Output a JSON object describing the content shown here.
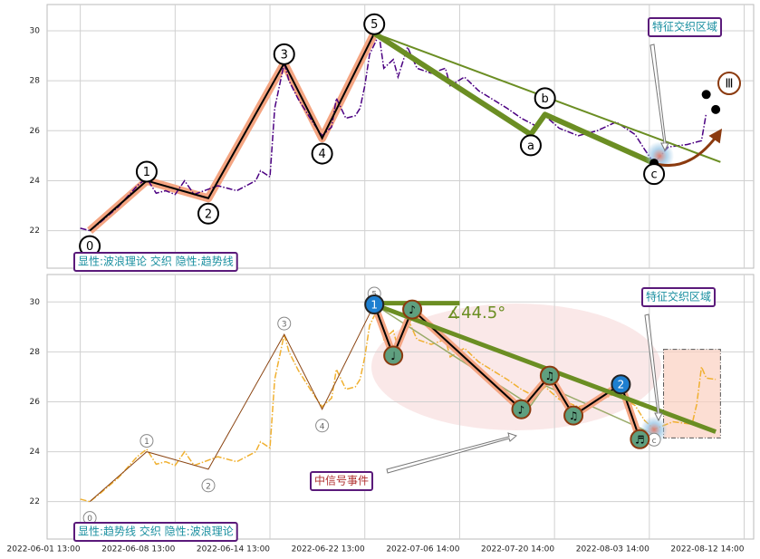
{
  "chart_data": [
    {
      "type": "line",
      "xlim": [
        -7,
        142
      ],
      "ylim": [
        20.5,
        31.05
      ],
      "yticks": [
        22,
        24,
        26,
        28,
        30
      ],
      "grid": true,
      "price": {
        "color": "#4b0082",
        "x": [
          0,
          2,
          4,
          8,
          12,
          14,
          16,
          18,
          20,
          22,
          24,
          29,
          33,
          37,
          38,
          40,
          41,
          43,
          44,
          46,
          49,
          51,
          53,
          54,
          56,
          58,
          59,
          60,
          61,
          63,
          64,
          66,
          67,
          69,
          71,
          74,
          77,
          78,
          81,
          84,
          87,
          90,
          93,
          96,
          98,
          101,
          105,
          109,
          113,
          117,
          119,
          121,
          124,
          128,
          131,
          132
        ],
        "values": [
          22.1,
          22.0,
          22.3,
          22.95,
          23.8,
          24.1,
          23.5,
          23.6,
          23.45,
          24.0,
          23.45,
          23.8,
          23.6,
          24.0,
          24.4,
          24.15,
          26.9,
          28.7,
          28.0,
          27.25,
          26.35,
          25.8,
          26.15,
          27.3,
          26.5,
          26.6,
          26.9,
          27.8,
          29.05,
          29.85,
          28.5,
          28.85,
          28.15,
          29.35,
          28.5,
          28.3,
          28.5,
          27.8,
          28.15,
          27.6,
          27.25,
          26.9,
          26.5,
          26.2,
          26.6,
          26.1,
          25.8,
          26.0,
          26.35,
          25.85,
          25.25,
          24.7,
          25.35,
          25.45,
          25.6,
          26.7
        ]
      },
      "wave": {
        "color": "#000000",
        "halo": "#f4a582",
        "x": [
          2,
          14,
          27,
          43,
          51,
          62
        ],
        "values": [
          22.0,
          24.0,
          23.3,
          28.7,
          25.7,
          29.9
        ],
        "labels": [
          "0",
          "1",
          "2",
          "3",
          "4",
          "5"
        ]
      },
      "correction": {
        "color": "#6b8e23",
        "x": [
          62,
          95,
          98,
          121
        ],
        "values": [
          29.9,
          25.85,
          26.65,
          24.7
        ],
        "labels": [
          null,
          "a",
          "b",
          "c"
        ]
      },
      "trend_line": {
        "color": "#6b8e23",
        "x": [
          62,
          135
        ],
        "values": [
          29.9,
          24.75
        ]
      },
      "arrow": {
        "color": "#8b3a0f",
        "x": [
          121,
          135
        ],
        "values": [
          24.7,
          26.0
        ]
      },
      "end_points": {
        "color": "#000000",
        "x": [
          132,
          134
        ],
        "values": [
          27.45,
          26.85
        ]
      },
      "wave_degree": "Ⅲ",
      "callout": "特征交织区域",
      "legend_box": "显性:波浪理论 交织 隐性:趋势线"
    },
    {
      "type": "line",
      "xlim": [
        -7,
        142
      ],
      "ylim": [
        20.5,
        31.1
      ],
      "yticks": [
        22,
        24,
        26,
        28,
        30
      ],
      "grid": true,
      "xticks": [
        {
          "value": 0,
          "label": "2022-06-01 13:00"
        },
        {
          "value": 20,
          "label": "2022-06-08 13:00"
        },
        {
          "value": 40,
          "label": "2022-06-14 13:00"
        },
        {
          "value": 60,
          "label": "2022-06-22 13:00"
        },
        {
          "value": 80,
          "label": "2022-07-06 14:00"
        },
        {
          "value": 100,
          "label": "2022-07-20 14:00"
        },
        {
          "value": 120,
          "label": "2022-08-03 14:00"
        },
        {
          "value": 140,
          "label": "2022-08-12 14:00"
        }
      ],
      "price": {
        "color": "#f0b030",
        "x": [
          0,
          2,
          4,
          8,
          12,
          14,
          16,
          18,
          20,
          22,
          24,
          29,
          33,
          37,
          38,
          40,
          41,
          43,
          44,
          46,
          49,
          51,
          53,
          54,
          56,
          58,
          59,
          60,
          61,
          63,
          64,
          66,
          67,
          69,
          71,
          74,
          77,
          78,
          81,
          84,
          87,
          90,
          93,
          96,
          98,
          101,
          105,
          109,
          113,
          117,
          119,
          121,
          125,
          129,
          130,
          131,
          132,
          134
        ],
        "values": [
          22.1,
          22.0,
          22.3,
          22.95,
          23.8,
          24.1,
          23.5,
          23.6,
          23.45,
          24.0,
          23.45,
          23.8,
          23.6,
          24.0,
          24.4,
          24.15,
          26.9,
          28.7,
          28.0,
          27.25,
          26.35,
          25.8,
          26.15,
          27.3,
          26.5,
          26.6,
          26.9,
          27.8,
          29.05,
          29.85,
          28.5,
          28.85,
          28.15,
          29.35,
          28.5,
          28.3,
          28.5,
          27.8,
          28.15,
          27.6,
          27.25,
          26.9,
          26.5,
          26.2,
          26.6,
          26.1,
          25.8,
          26.0,
          26.35,
          25.85,
          25.25,
          24.9,
          25.2,
          25.1,
          25.9,
          27.4,
          26.95,
          26.9
        ]
      },
      "wave": {
        "color": "#8b4513",
        "x": [
          2,
          14,
          27,
          43,
          51,
          62
        ],
        "values": [
          22.0,
          24.0,
          23.3,
          28.7,
          25.7,
          29.9
        ],
        "labels": [
          "0",
          "1",
          "2",
          "3",
          "4",
          "5"
        ]
      },
      "correction": {
        "color": "#9aab6a",
        "x": [
          62,
          95,
          98,
          121
        ],
        "values": [
          29.9,
          25.85,
          26.65,
          24.7
        ],
        "labels": [
          null,
          null,
          null,
          "c"
        ]
      },
      "signal": {
        "color": "#000000",
        "halo": "#f4a582",
        "x": [
          62,
          66,
          70,
          93,
          99,
          104,
          114,
          118
        ],
        "values": [
          29.9,
          27.85,
          29.7,
          25.7,
          27.05,
          25.45,
          26.7,
          24.5
        ],
        "markers": [
          "1",
          "♩",
          "♪",
          "♪",
          "♫",
          "♫",
          "2",
          "♬"
        ]
      },
      "trend_line": {
        "color": "#6b8e23",
        "x": [
          62,
          134
        ],
        "values": [
          29.9,
          24.8
        ]
      },
      "horizontal_line": {
        "color": "#6b8e23",
        "x": [
          62,
          80
        ],
        "values": [
          29.95,
          29.95
        ]
      },
      "angle_label": "∡44.5°",
      "highlight_box": {
        "x": [
          123,
          135
        ],
        "values": [
          24.55,
          28.1
        ]
      },
      "callout": "特征交织区域",
      "event_label": "中信号事件",
      "legend_box": "显性:趋势线 交织 隐性:波浪理论"
    }
  ]
}
